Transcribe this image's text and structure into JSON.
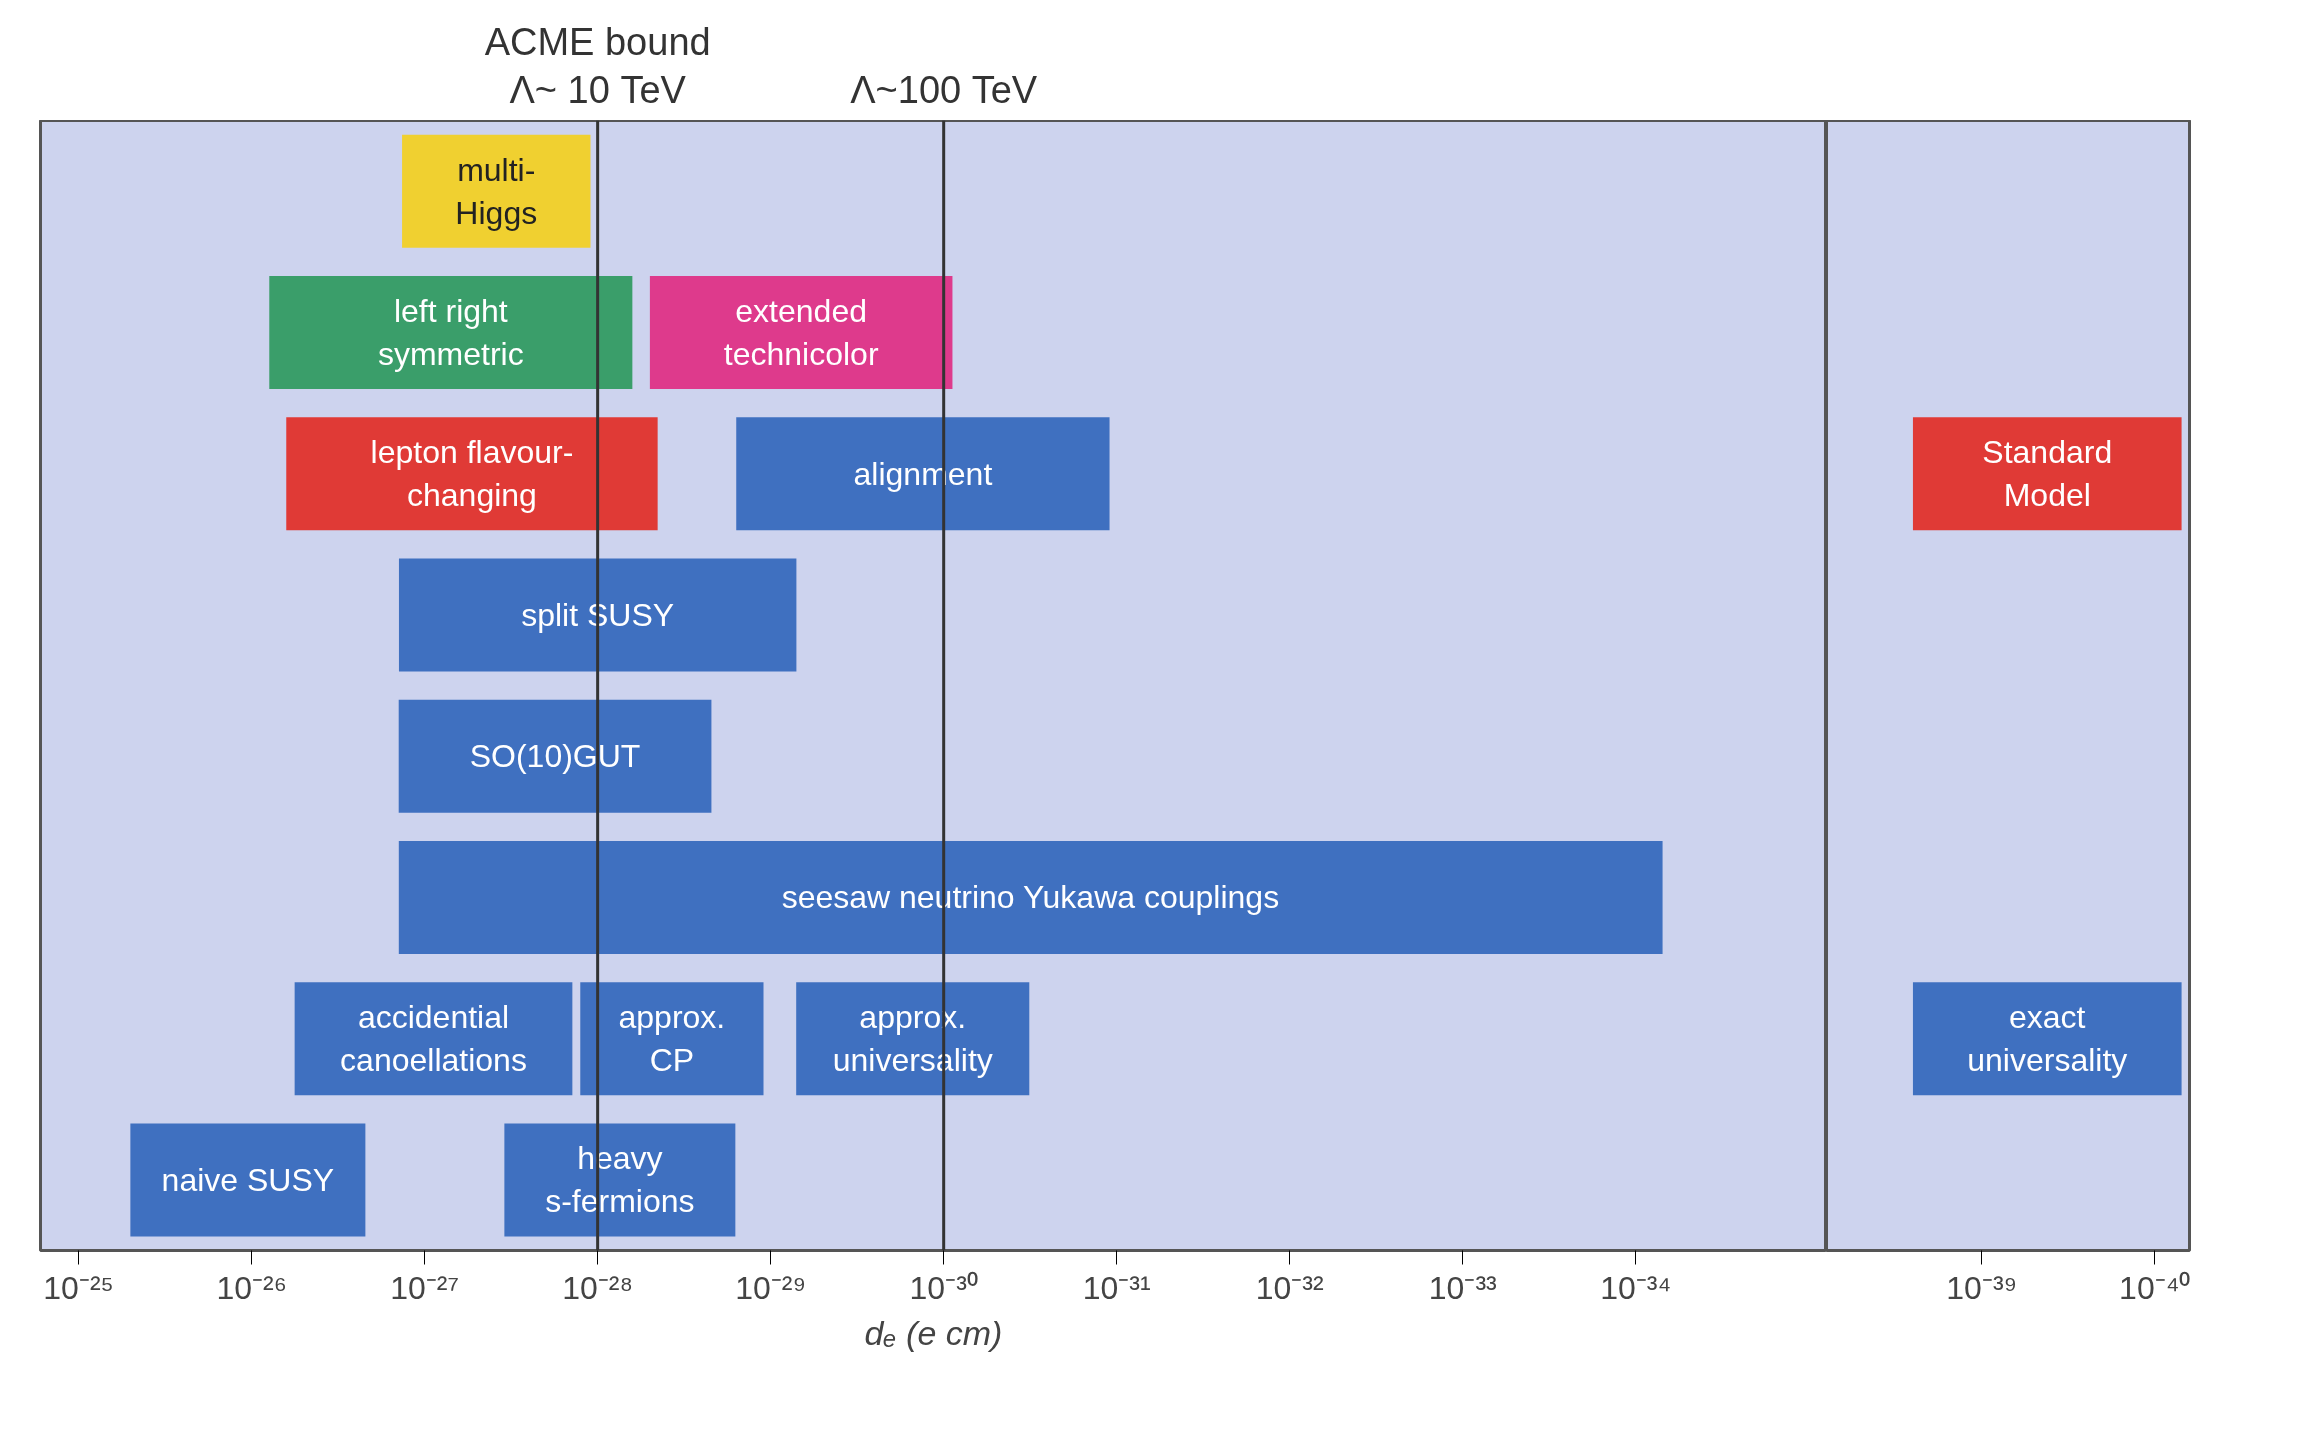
{
  "chart_data": [
    {
      "type": "bar",
      "orientation": "horizontal",
      "xlabel": "dₑ (e cm)",
      "tick_labels": "x",
      "grid": false,
      "categories": [
        null,
        null,
        null,
        null,
        null,
        null,
        null,
        null
      ],
      "xlim": [
        1.66e-25,
        7.9e-36
      ],
      "xticks": [
        {
          "value": 1e-25,
          "label": "10⁻²⁵"
        },
        {
          "value": 1e-26,
          "label": "10⁻²⁶"
        },
        {
          "value": 1e-27,
          "label": "10⁻²⁷"
        },
        {
          "value": 1e-28,
          "label": "10⁻²⁸"
        },
        {
          "value": 1e-29,
          "label": "10⁻²⁹"
        },
        {
          "value": 1e-30,
          "label": "10⁻³⁰"
        },
        {
          "value": 1e-31,
          "label": "10⁻³¹"
        },
        {
          "value": 1e-32,
          "label": "10⁻³²"
        },
        {
          "value": 1e-33,
          "label": "10⁻³³"
        },
        {
          "value": 1e-34,
          "label": "10⁻³⁴"
        }
      ],
      "log": "x",
      "series": [
        {
          "name": "multi-\nHiggs",
          "color": "#f0d030",
          "values": [
            1.24e-27,
            null,
            null,
            null,
            null,
            null,
            null,
            null
          ],
          "base": [
            1.1e-28,
            null,
            null,
            null,
            null,
            null,
            null,
            null
          ]
        },
        {
          "name": "left right\nsymmetric",
          "color": "#3a9e6a",
          "values": [
            null,
            7.84e-27,
            null,
            null,
            null,
            null,
            null,
            null
          ],
          "base": [
            null,
            6.3e-29,
            null,
            null,
            null,
            null,
            null,
            null
          ]
        },
        {
          "name": "extended\ntechnicolor",
          "color": "#de3a8c",
          "values": [
            null,
            4.9e-29,
            null,
            null,
            null,
            null,
            null,
            null
          ],
          "base": [
            null,
            8.9e-31,
            null,
            null,
            null,
            null,
            null,
            null
          ]
        },
        {
          "name": "lepton flavour-\nchanging",
          "color": "#e03a36",
          "values": [
            null,
            null,
            6.26e-27,
            null,
            null,
            null,
            null,
            null
          ],
          "base": [
            null,
            null,
            4.5e-29,
            null,
            null,
            null,
            null,
            null
          ]
        },
        {
          "name": "alignment",
          "color": "#3f70c0",
          "values": [
            null,
            null,
            1.57e-29,
            null,
            null,
            null,
            null,
            null
          ],
          "base": [
            null,
            null,
            1.1e-31,
            null,
            null,
            null,
            null,
            null
          ]
        },
        {
          "name": "split SUSY",
          "color": "#3f70c0",
          "values": [
            null,
            null,
            null,
            1.4e-27,
            null,
            null,
            null,
            null
          ],
          "base": [
            null,
            null,
            null,
            7.1e-30,
            null,
            null,
            null,
            null
          ]
        },
        {
          "name": "SO(10)GUT",
          "color": "#3f70c0",
          "values": [
            null,
            null,
            null,
            null,
            1.39e-27,
            null,
            null,
            null
          ],
          "base": [
            null,
            null,
            null,
            null,
            2.2e-29,
            null,
            null,
            null
          ]
        },
        {
          "name": "seesaw neutrino Yukawa couplings",
          "color": "#3f70c0",
          "values": [
            null,
            null,
            null,
            null,
            null,
            1.41e-27,
            null,
            null
          ],
          "base": [
            null,
            null,
            null,
            null,
            null,
            7e-35,
            null,
            null
          ]
        },
        {
          "name": "accidential\ncanoellations",
          "color": "#3f70c0",
          "values": [
            null,
            null,
            null,
            null,
            null,
            null,
            5.5e-27,
            null
          ],
          "base": [
            null,
            null,
            null,
            null,
            null,
            null,
            1.4e-28,
            null
          ]
        },
        {
          "name": "approx.\nCP",
          "color": "#3f70c0",
          "values": [
            null,
            null,
            null,
            null,
            null,
            null,
            1.15e-28,
            null
          ],
          "base": [
            null,
            null,
            null,
            null,
            null,
            null,
            1.1e-29,
            null
          ]
        },
        {
          "name": "approx.\nuniversality",
          "color": "#3f70c0",
          "values": [
            null,
            null,
            null,
            null,
            null,
            null,
            6.8e-30,
            null
          ],
          "base": [
            null,
            null,
            null,
            null,
            null,
            null,
            3.2e-31,
            null
          ]
        },
        {
          "name": "naive SUSY",
          "color": "#3f70c0",
          "values": [
            null,
            null,
            null,
            null,
            null,
            null,
            null,
            4.8e-26
          ],
          "base": [
            null,
            null,
            null,
            null,
            null,
            null,
            null,
            2.2e-27
          ]
        },
        {
          "name": "heavy\ns-fermions",
          "color": "#3f70c0",
          "values": [
            null,
            null,
            null,
            null,
            null,
            null,
            null,
            3.3e-28
          ],
          "base": [
            null,
            null,
            null,
            null,
            null,
            null,
            null,
            1.6e-29
          ]
        }
      ],
      "ref_lines": [
        {
          "axis": "x",
          "value": 1e-28,
          "label": "ACME bound\nΛ~ 10 TeV",
          "color": "#333333"
        },
        {
          "axis": "x",
          "value": 1e-30,
          "label": "Λ~100 TeV",
          "color": "#333333"
        }
      ]
    },
    {
      "type": "bar",
      "orientation": "horizontal",
      "tick_labels": "x",
      "grid": false,
      "categories": [
        null,
        null,
        null,
        null,
        null,
        null,
        null,
        null
      ],
      "xlim": [
        7.9e-39,
        6.3e-41
      ],
      "xticks": [
        {
          "value": 1e-39,
          "label": "10⁻³⁹"
        },
        {
          "value": 1e-40,
          "label": "10⁻⁴⁰"
        }
      ],
      "log": "x",
      "series": [
        {
          "name": "Standard\nModel",
          "color": "#e03a36",
          "values": [
            null,
            null,
            2.43e-39,
            null,
            null,
            null,
            null,
            null
          ],
          "base": [
            null,
            null,
            7e-41,
            null,
            null,
            null,
            null,
            null
          ]
        },
        {
          "name": "exact\nuniversality",
          "color": "#3f70c0",
          "values": [
            null,
            null,
            null,
            null,
            null,
            null,
            2.43e-39,
            null
          ],
          "base": [
            null,
            null,
            null,
            null,
            null,
            null,
            7e-41,
            null
          ]
        }
      ]
    }
  ]
}
